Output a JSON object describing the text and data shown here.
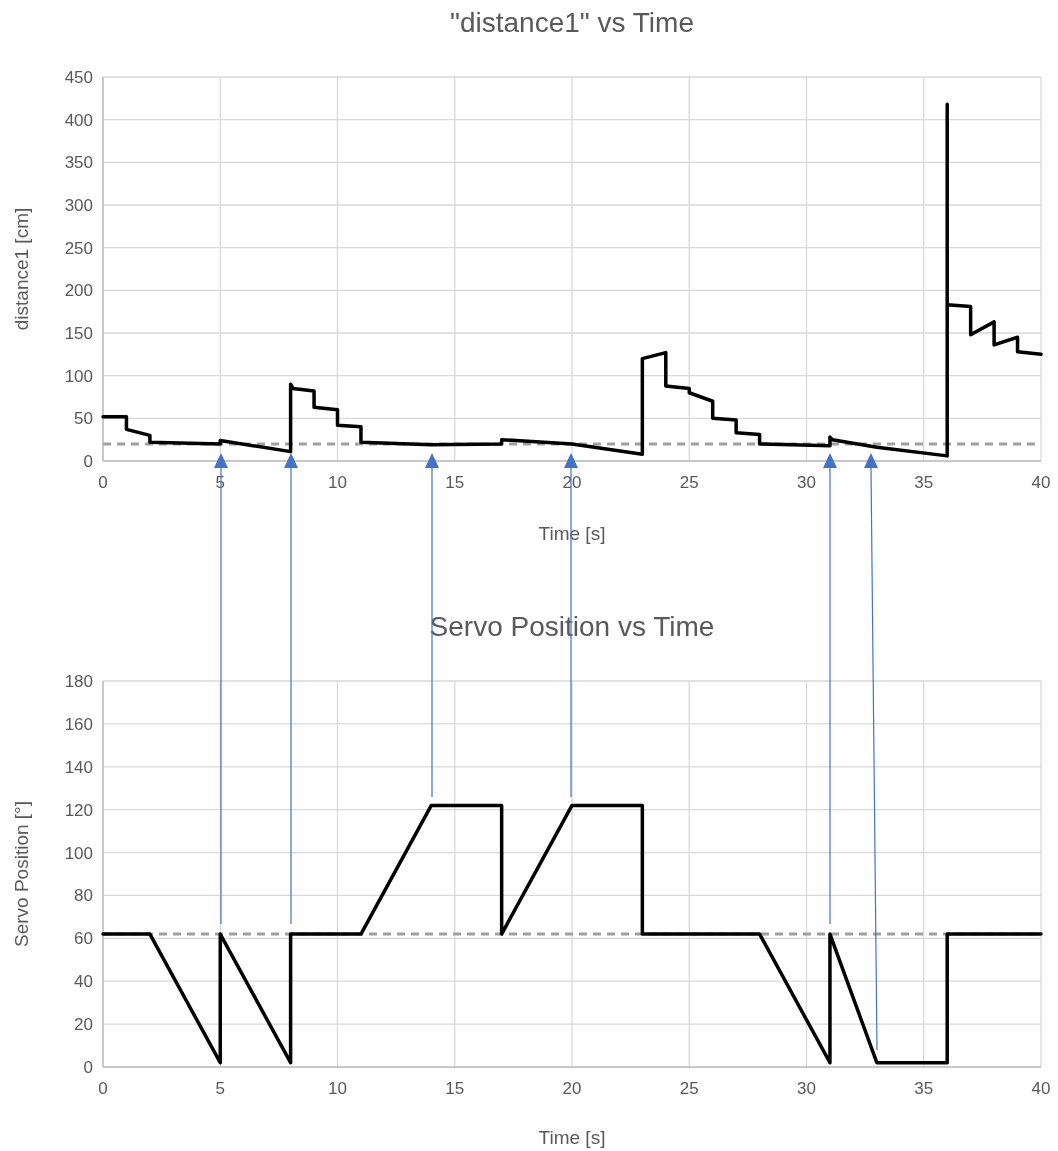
{
  "chart_data": [
    {
      "type": "line",
      "title": "\"distance1\" vs Time",
      "xlabel": "Time [s]",
      "ylabel": "distance1 [cm]",
      "series": [
        {
          "color": "#000000",
          "x": [
            0,
            1,
            1,
            2,
            2,
            5,
            5,
            8,
            8,
            8.1,
            9,
            9,
            10,
            10,
            11,
            11,
            14,
            17,
            17,
            20,
            23,
            23,
            24,
            24,
            25,
            25,
            26,
            26,
            27,
            27,
            28,
            28,
            31,
            31,
            31.1,
            33,
            36,
            36,
            36,
            37,
            37,
            38,
            38,
            39,
            39,
            40
          ],
          "values": [
            52,
            52,
            37,
            30,
            22,
            20,
            24,
            11,
            90,
            85,
            82,
            63,
            60,
            42,
            40,
            22,
            19,
            20,
            25,
            20,
            8,
            120,
            127,
            88,
            85,
            80,
            70,
            50,
            48,
            33,
            31,
            20,
            18,
            28,
            25,
            16,
            6,
            418,
            183,
            181,
            148,
            163,
            136,
            145,
            128,
            125
          ]
        }
      ],
      "xlim": [
        0,
        40
      ],
      "xticks": [
        0,
        5,
        10,
        15,
        20,
        25,
        30,
        35,
        40
      ],
      "ylim": [
        0,
        450
      ],
      "yticks": [
        0,
        50,
        100,
        150,
        200,
        250,
        300,
        350,
        400,
        450
      ],
      "grid": true,
      "line_style": "solid",
      "marker": "none",
      "ref_lines": [
        {
          "axis": "y",
          "value": 20,
          "color": "#a0a0a0",
          "line_style": "dashed"
        }
      ]
    },
    {
      "type": "line",
      "title": "Servo Position vs Time",
      "xlabel": "Time [s]",
      "ylabel": "Servo Position [°]",
      "series": [
        {
          "color": "#000000",
          "x": [
            0,
            2,
            5,
            5,
            8,
            8,
            11,
            14,
            17,
            17,
            20,
            23,
            23,
            28,
            31,
            31,
            33,
            36,
            36,
            40
          ],
          "values": [
            62,
            62,
            2,
            62,
            2,
            62,
            62,
            122,
            122,
            62,
            122,
            122,
            62,
            62,
            2,
            62,
            2,
            2,
            62,
            62
          ]
        }
      ],
      "xlim": [
        0,
        40
      ],
      "xticks": [
        0,
        5,
        10,
        15,
        20,
        25,
        30,
        35,
        40
      ],
      "ylim": [
        0,
        180
      ],
      "yticks": [
        0,
        20,
        40,
        60,
        80,
        100,
        120,
        140,
        160,
        180
      ],
      "grid": true,
      "line_style": "solid",
      "marker": "none",
      "ref_lines": [
        {
          "axis": "y",
          "value": 62,
          "color": "#a0a0a0",
          "line_style": "dashed"
        }
      ]
    }
  ]
}
